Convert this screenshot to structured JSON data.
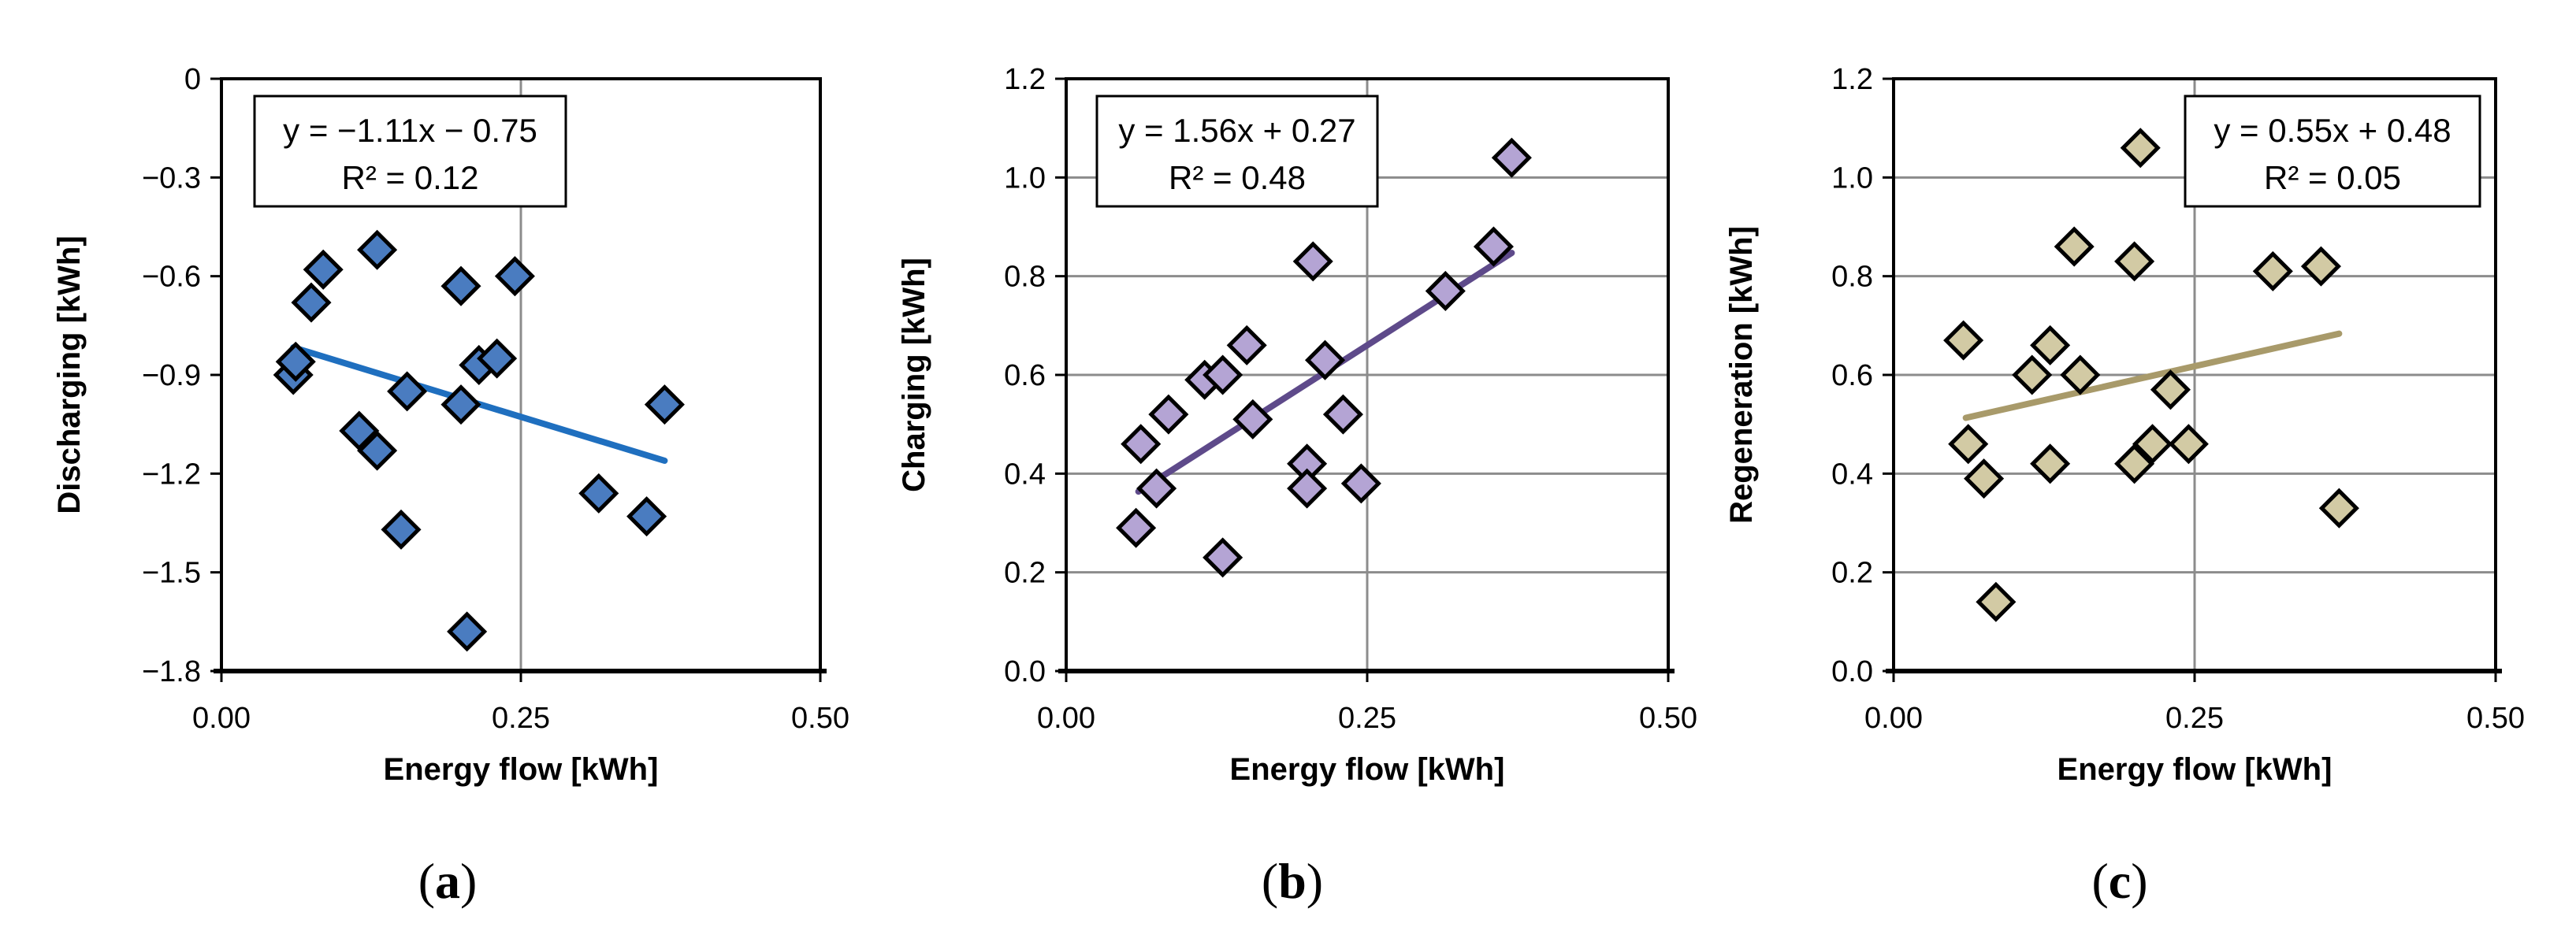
{
  "chart_data": [
    {
      "type": "scatter",
      "panel_label": "a",
      "xlabel": "Energy flow [kWh]",
      "ylabel": "Discharging [kWh]",
      "xlim": [
        0.0,
        0.5
      ],
      "ylim": [
        -1.8,
        0.0
      ],
      "x_ticks": [
        0.0,
        0.25,
        0.5
      ],
      "x_tick_labels": [
        "0.00",
        "0.25",
        "0.50"
      ],
      "y_ticks": [
        -1.8,
        -1.5,
        -1.2,
        -0.9,
        -0.6,
        -0.3,
        0.0
      ],
      "y_tick_labels": [
        "−1.8",
        "−1.5",
        "−1.2",
        "−0.9",
        "−0.6",
        "−0.3",
        "0"
      ],
      "grid": "vertical at x=0.25 only",
      "marker_color": "#4a7cc0",
      "trend_color": "#1f6fbf",
      "equation": "y = −1.11x − 0.75",
      "r_squared": "R² = 0.12",
      "equation_box_position": "top-left",
      "trendline": {
        "slope": -1.11,
        "intercept": -0.75,
        "x_range": [
          0.06,
          0.37
        ]
      },
      "points": [
        {
          "x": 0.06,
          "y": -0.9
        },
        {
          "x": 0.062,
          "y": -0.86
        },
        {
          "x": 0.075,
          "y": -0.68
        },
        {
          "x": 0.085,
          "y": -0.58
        },
        {
          "x": 0.115,
          "y": -1.07
        },
        {
          "x": 0.13,
          "y": -1.13
        },
        {
          "x": 0.13,
          "y": -0.52
        },
        {
          "x": 0.15,
          "y": -1.37
        },
        {
          "x": 0.155,
          "y": -0.95
        },
        {
          "x": 0.2,
          "y": -0.99
        },
        {
          "x": 0.2,
          "y": -0.63
        },
        {
          "x": 0.205,
          "y": -1.68
        },
        {
          "x": 0.215,
          "y": -0.87
        },
        {
          "x": 0.23,
          "y": -0.85
        },
        {
          "x": 0.245,
          "y": -0.6
        },
        {
          "x": 0.315,
          "y": -1.26
        },
        {
          "x": 0.355,
          "y": -1.33
        },
        {
          "x": 0.37,
          "y": -0.99
        }
      ]
    },
    {
      "type": "scatter",
      "panel_label": "b",
      "xlabel": "Energy flow [kWh]",
      "ylabel": "Charging [kWh]",
      "xlim": [
        0.0,
        0.5
      ],
      "ylim": [
        0.0,
        1.2
      ],
      "x_ticks": [
        0.0,
        0.25,
        0.5
      ],
      "x_tick_labels": [
        "0.00",
        "0.25",
        "0.50"
      ],
      "y_ticks": [
        0.0,
        0.2,
        0.4,
        0.6,
        0.8,
        1.0,
        1.2
      ],
      "y_tick_labels": [
        "0.0",
        "0.2",
        "0.4",
        "0.6",
        "0.8",
        "1.0",
        "1.2"
      ],
      "grid": "horizontal and vertical at x=0.25",
      "marker_color": "#b4a4d4",
      "trend_color": "#5e4a8a",
      "equation": "y = 1.56x + 0.27",
      "r_squared": "R² = 0.48",
      "equation_box_position": "top-left",
      "trendline": {
        "slope": 1.56,
        "intercept": 0.27,
        "x_range": [
          0.06,
          0.37
        ]
      },
      "points": [
        {
          "x": 0.058,
          "y": 0.29
        },
        {
          "x": 0.062,
          "y": 0.46
        },
        {
          "x": 0.075,
          "y": 0.37
        },
        {
          "x": 0.085,
          "y": 0.52
        },
        {
          "x": 0.115,
          "y": 0.59
        },
        {
          "x": 0.13,
          "y": 0.23
        },
        {
          "x": 0.13,
          "y": 0.6
        },
        {
          "x": 0.15,
          "y": 0.66
        },
        {
          "x": 0.155,
          "y": 0.51
        },
        {
          "x": 0.2,
          "y": 0.42
        },
        {
          "x": 0.2,
          "y": 0.37
        },
        {
          "x": 0.205,
          "y": 0.83
        },
        {
          "x": 0.215,
          "y": 0.63
        },
        {
          "x": 0.23,
          "y": 0.52
        },
        {
          "x": 0.245,
          "y": 0.38
        },
        {
          "x": 0.315,
          "y": 0.77
        },
        {
          "x": 0.355,
          "y": 0.86
        },
        {
          "x": 0.37,
          "y": 1.04
        }
      ]
    },
    {
      "type": "scatter",
      "panel_label": "c",
      "xlabel": "Energy flow [kWh]",
      "ylabel": "Regeneration [kWh]",
      "xlim": [
        0.0,
        0.5
      ],
      "ylim": [
        0.0,
        1.2
      ],
      "x_ticks": [
        0.0,
        0.25,
        0.5
      ],
      "x_tick_labels": [
        "0.00",
        "0.25",
        "0.50"
      ],
      "y_ticks": [
        0.0,
        0.2,
        0.4,
        0.6,
        0.8,
        1.0,
        1.2
      ],
      "y_tick_labels": [
        "0.0",
        "0.2",
        "0.4",
        "0.6",
        "0.8",
        "1.0",
        "1.2"
      ],
      "grid": "horizontal and vertical at x=0.25",
      "marker_color": "#d2caa4",
      "trend_color": "#a89a6a",
      "equation": "y = 0.55x + 0.48",
      "r_squared": "R² = 0.05",
      "equation_box_position": "top-right",
      "trendline": {
        "slope": 0.55,
        "intercept": 0.48,
        "x_range": [
          0.06,
          0.37
        ]
      },
      "points": [
        {
          "x": 0.058,
          "y": 0.67
        },
        {
          "x": 0.062,
          "y": 0.46
        },
        {
          "x": 0.075,
          "y": 0.39
        },
        {
          "x": 0.085,
          "y": 0.14
        },
        {
          "x": 0.115,
          "y": 0.6
        },
        {
          "x": 0.13,
          "y": 0.42
        },
        {
          "x": 0.13,
          "y": 0.66
        },
        {
          "x": 0.15,
          "y": 0.86
        },
        {
          "x": 0.155,
          "y": 0.6
        },
        {
          "x": 0.2,
          "y": 0.42
        },
        {
          "x": 0.2,
          "y": 0.83
        },
        {
          "x": 0.205,
          "y": 1.06
        },
        {
          "x": 0.215,
          "y": 0.46
        },
        {
          "x": 0.23,
          "y": 0.57
        },
        {
          "x": 0.245,
          "y": 0.46
        },
        {
          "x": 0.315,
          "y": 0.81
        },
        {
          "x": 0.355,
          "y": 0.82
        },
        {
          "x": 0.37,
          "y": 0.33
        }
      ]
    }
  ]
}
